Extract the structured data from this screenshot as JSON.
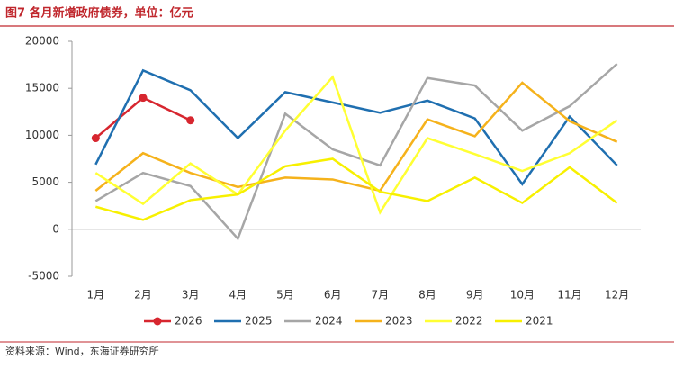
{
  "title": "图7 各月新增政府债券，单位：亿元",
  "source": "资料来源：Wind，东海证券研究所",
  "chart_data": {
    "type": "line",
    "categories": [
      "1月",
      "2月",
      "3月",
      "4月",
      "5月",
      "6月",
      "7月",
      "8月",
      "9月",
      "10月",
      "11月",
      "12月"
    ],
    "ylim": [
      -5000,
      20000
    ],
    "yticks": [
      -5000,
      0,
      5000,
      10000,
      15000,
      20000
    ],
    "grid": false,
    "legend": "bottom",
    "series": [
      {
        "name": "2026",
        "color": "#d7262f",
        "marker": true,
        "values": [
          9700,
          14000,
          11600,
          null,
          null,
          null,
          null,
          null,
          null,
          null,
          null,
          null
        ]
      },
      {
        "name": "2025",
        "color": "#1f6fb0",
        "values": [
          6900,
          16900,
          14800,
          9700,
          14600,
          13500,
          12400,
          13700,
          11800,
          4800,
          12000,
          6800
        ]
      },
      {
        "name": "2024",
        "color": "#a6a6a6",
        "values": [
          3000,
          6000,
          4600,
          -1000,
          12300,
          8500,
          6800,
          16100,
          15300,
          10500,
          13100,
          17600
        ]
      },
      {
        "name": "2023",
        "color": "#f5b21b",
        "values": [
          4100,
          8100,
          6000,
          4500,
          5500,
          5300,
          4100,
          11700,
          9900,
          15600,
          11500,
          9300
        ]
      },
      {
        "name": "2022",
        "color": "#ffff33",
        "values": [
          6000,
          2700,
          7000,
          3700,
          10500,
          16200,
          1800,
          9700,
          8000,
          6200,
          8100,
          11600
        ]
      },
      {
        "name": "2021",
        "color": "#f7f000",
        "values": [
          2400,
          1000,
          3100,
          3700,
          6700,
          7500,
          4000,
          3000,
          5500,
          2800,
          6600,
          2800
        ]
      }
    ]
  }
}
